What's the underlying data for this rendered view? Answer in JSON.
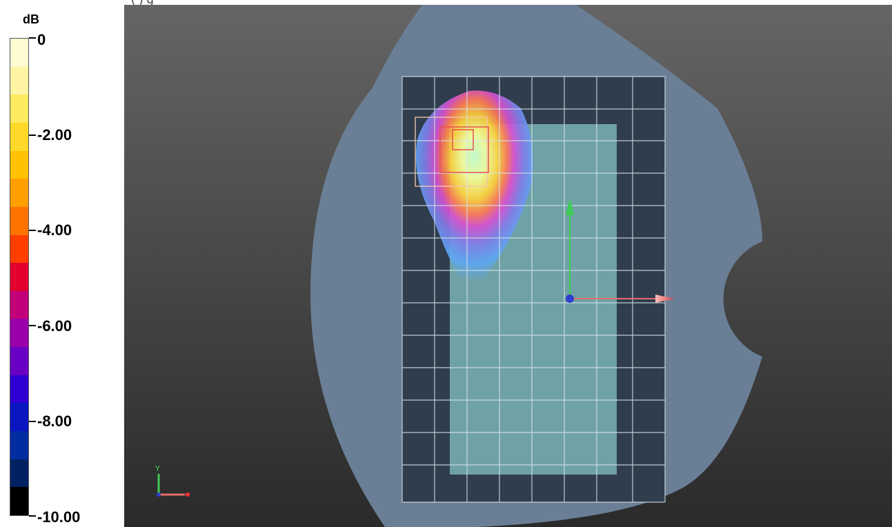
{
  "caption": "(              )                        g",
  "legend": {
    "unit": "dB",
    "labels": [
      "0",
      "-2.00",
      "-4.00",
      "-6.00",
      "-8.00",
      "-10.00"
    ],
    "colors": [
      "#fffbd0",
      "#fff4a4",
      "#ffe95f",
      "#ffd92a",
      "#ffc100",
      "#ff9f00",
      "#ff7300",
      "#ff3e00",
      "#e3002e",
      "#c2007a",
      "#9a00aa",
      "#6a00c3",
      "#3100d2",
      "#0a16c0",
      "#002da0",
      "#002262",
      "#000000"
    ]
  },
  "viewport": {
    "background_top": "#656565",
    "background_bottom": "#2a2a2a",
    "body_color": "#6a7f95",
    "grid_color": "#d8e4ec",
    "axes_colors": {
      "y": "#3ecc55",
      "x": "#e86c6c",
      "origin": "#2d3fd0"
    },
    "orientation_icon_labels": {
      "y": "Y",
      "x": "X"
    }
  }
}
